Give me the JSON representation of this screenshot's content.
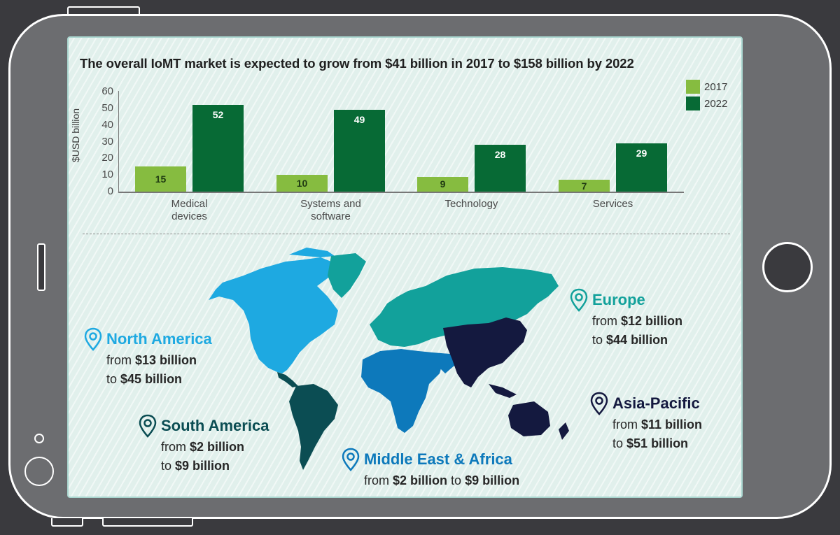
{
  "device": {
    "frame_color": "#6c6d70",
    "background_color": "#3a3a3e"
  },
  "title": "The overall IoMT market is expected to grow from $41 billion in 2017 to $158 billion by 2022",
  "chart_data": {
    "type": "bar",
    "title": "The overall IoMT market is expected to grow from $41 billion in 2017 to $158 billion by 2022",
    "xlabel": "",
    "ylabel": "$USD billion",
    "ylim": [
      0,
      60
    ],
    "yticks": [
      0,
      10,
      20,
      30,
      40,
      50,
      60
    ],
    "grid": false,
    "legend_position": "top-right",
    "categories": [
      "Medical devices",
      "Systems and software",
      "Technology",
      "Services"
    ],
    "category_lines": [
      [
        "Medical",
        "devices"
      ],
      [
        "Systems and",
        "software"
      ],
      [
        "Technology",
        ""
      ],
      [
        "Services",
        ""
      ]
    ],
    "series": [
      {
        "name": "2017",
        "color": "#86bc40",
        "values": [
          15,
          10,
          9,
          7
        ]
      },
      {
        "name": "2022",
        "color": "#076a35",
        "values": [
          52,
          49,
          28,
          29
        ]
      }
    ]
  },
  "legend": [
    {
      "label": "2017",
      "color": "#86bc40"
    },
    {
      "label": "2022",
      "color": "#076a35"
    }
  ],
  "map": {
    "colors": {
      "north_america": "#1ea9e1",
      "south_america": "#0b4d53",
      "europe": "#12a19b",
      "middle_east_africa": "#0d79bb",
      "asia_pacific": "#14193f"
    }
  },
  "regions": {
    "north_america": {
      "name": "North America",
      "color": "#1ea9e1",
      "from_prefix": "from",
      "from_value": "$13 billion",
      "to_prefix": "to",
      "to_value": "$45 billion"
    },
    "europe": {
      "name": "Europe",
      "color": "#12a19b",
      "from_prefix": "from",
      "from_value": "$12 billion",
      "to_prefix": "to",
      "to_value": "$44 billion"
    },
    "asia_pacific": {
      "name": "Asia-Pacific",
      "color": "#14193f",
      "from_prefix": "from",
      "from_value": "$11 billion",
      "to_prefix": "to",
      "to_value": "$51 billion"
    },
    "south_america": {
      "name": "South America",
      "color": "#0b4d53",
      "from_prefix": "from",
      "from_value": "$2 billion",
      "to_prefix": "to",
      "to_value": "$9 billion"
    },
    "middle_east_africa": {
      "name": "Middle East & Africa",
      "color": "#0d79bb",
      "from_prefix": "from",
      "from_value": "$2 billion",
      "to_prefix": "to",
      "to_value": "$9 billion"
    }
  },
  "icons": {
    "region_marker": "map-pin-icon"
  }
}
